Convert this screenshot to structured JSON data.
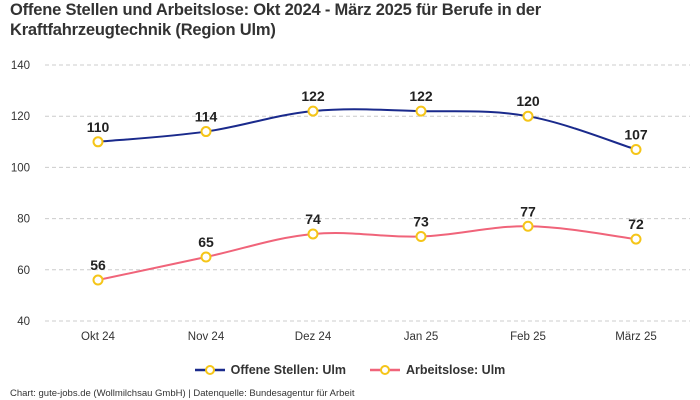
{
  "title": "Offene Stellen und Arbeitslose: Okt 2024 - März 2025 für Berufe in der Kraftfahrzeugtechnik (Region Ulm)",
  "footer": "Chart: gute-jobs.de (Wollmilchsau GmbH) | Datenquelle: Bundesagentur für Arbeit",
  "chart_data": {
    "type": "line",
    "title": "Offene Stellen und Arbeitslose: Okt 2024 - März 2025 für Berufe in der Kraftfahrzeugtechnik (Region Ulm)",
    "categories": [
      "Okt 24",
      "Nov 24",
      "Dez 24",
      "Jan 25",
      "Feb 25",
      "März 25"
    ],
    "ylim": [
      40,
      140
    ],
    "yticks": [
      40,
      60,
      80,
      100,
      120,
      140
    ],
    "grid": true,
    "legend_placement": "bottom",
    "series": [
      {
        "name": "Offene Stellen: Ulm",
        "values": [
          110,
          114,
          122,
          122,
          120,
          107
        ],
        "color": "#1a2a8c"
      },
      {
        "name": "Arbeitslose: Ulm",
        "values": [
          56,
          65,
          74,
          73,
          77,
          72
        ],
        "color": "#f0647a"
      }
    ],
    "marker_color": "#f5c518"
  }
}
